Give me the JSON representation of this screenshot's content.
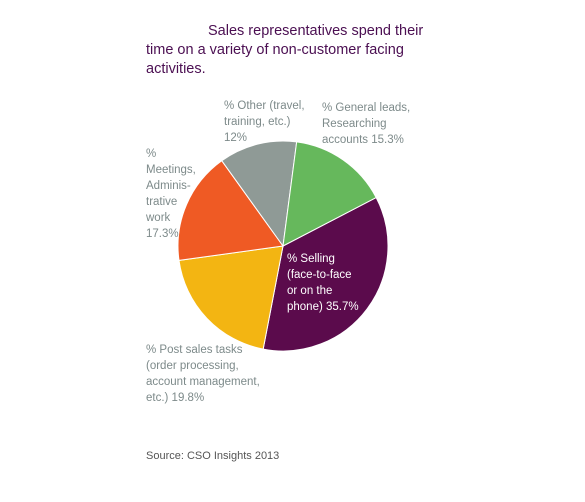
{
  "chart_data": {
    "type": "pie",
    "title": "Sales representatives spend their time on a variety of non-customer facing activities.",
    "slices": [
      {
        "label": "% Selling (face-to-face or on the phone) 35.7%",
        "value": 35.7,
        "color": "#5b0b4c"
      },
      {
        "label": "% Post sales tasks (order processing, account management, etc.) 19.8%",
        "value": 19.8,
        "color": "#f3b512"
      },
      {
        "label": "% Meetings, Administrative work 17.3%",
        "value": 17.3,
        "color": "#ef5a24"
      },
      {
        "label": "% Other (travel, training, etc.) 12%",
        "value": 12,
        "color": "#8f9a96"
      },
      {
        "label": "% General leads, Researching accounts 15.3%",
        "value": 15.3,
        "color": "#66b85c"
      }
    ],
    "source": "Source: CSO Insights 2013"
  },
  "labels": {
    "selling": "% Selling\n(face-to-face\nor on the\nphone) 35.7%",
    "post_sales": "% Post sales tasks\n(order processing,\naccount management,\netc.) 19.8%",
    "meetings": "%\nMeetings,\nAdminis-\ntrative\nwork\n17.3%",
    "other": "% Other (travel,\ntraining, etc.)\n12%",
    "general": "% General leads,\nResearching\naccounts 15.3%"
  }
}
